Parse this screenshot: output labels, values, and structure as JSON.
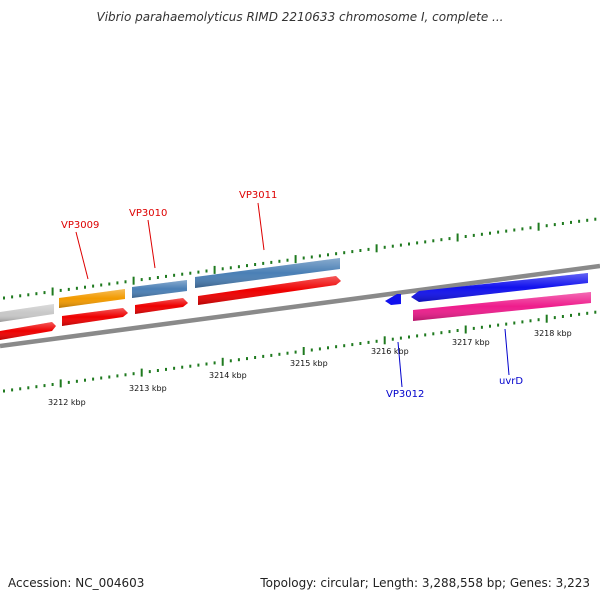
{
  "title": "Vibrio parahaemolyticus RIMD 2210633 chromosome I, complete ...",
  "accession": "Accession: NC_004603",
  "topology": "Topology: circular; Length: 3,288,558 bp; Genes: 3,223",
  "colors": {
    "backbone": "#888888",
    "tick_green": "#1f7a1f",
    "label_red": "#dd0000",
    "label_blue": "#0000cc",
    "gene_grey": "#c8c8c8",
    "gene_orange": "#f29a00",
    "gene_steelblue": "#4a7fb5",
    "gene_red": "#ee0000",
    "gene_blue": "#1111ee",
    "gene_pink": "#ee1c8c"
  },
  "scale": {
    "unit": "kbp",
    "labels": [
      "3212 kbp",
      "3213 kbp",
      "3214 kbp",
      "3215 kbp",
      "3216 kbp",
      "3217 kbp",
      "3218 kbp"
    ]
  },
  "gene_labels": [
    {
      "id": "VP3009",
      "text": "VP3009",
      "color": "red"
    },
    {
      "id": "VP3010",
      "text": "VP3010",
      "color": "red"
    },
    {
      "id": "VP3011",
      "text": "VP3011",
      "color": "red"
    },
    {
      "id": "VP3012",
      "text": "VP3012",
      "color": "blue"
    },
    {
      "id": "uvrD",
      "text": "uvrD",
      "color": "blue"
    }
  ]
}
